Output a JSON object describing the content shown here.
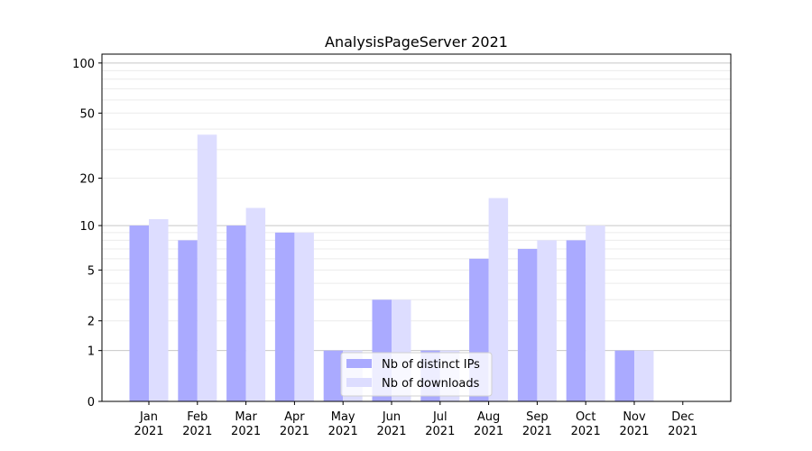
{
  "chart_data": {
    "type": "bar",
    "title": "AnalysisPageServer 2021",
    "xlabel": "",
    "ylabel": "",
    "yscale": "symlog (log10(1+y))",
    "ylim": [
      0,
      113
    ],
    "yticks": [
      0,
      1,
      2,
      5,
      10,
      20,
      50,
      100
    ],
    "grid": true,
    "legend_position": "lower-center",
    "categories": [
      "Jan\n2021",
      "Feb\n2021",
      "Mar\n2021",
      "Apr\n2021",
      "May\n2021",
      "Jun\n2021",
      "Jul\n2021",
      "Aug\n2021",
      "Sep\n2021",
      "Oct\n2021",
      "Nov\n2021",
      "Dec\n2021"
    ],
    "series": [
      {
        "name": "Nb of distinct IPs",
        "color": "#aaaaff",
        "values": [
          10,
          8,
          10,
          9,
          1,
          3,
          1,
          6,
          7,
          8,
          1,
          0
        ]
      },
      {
        "name": "Nb of downloads",
        "color": "#ddddff",
        "values": [
          11,
          37,
          13,
          9,
          1,
          3,
          1,
          15,
          8,
          10,
          1,
          0
        ]
      }
    ]
  }
}
